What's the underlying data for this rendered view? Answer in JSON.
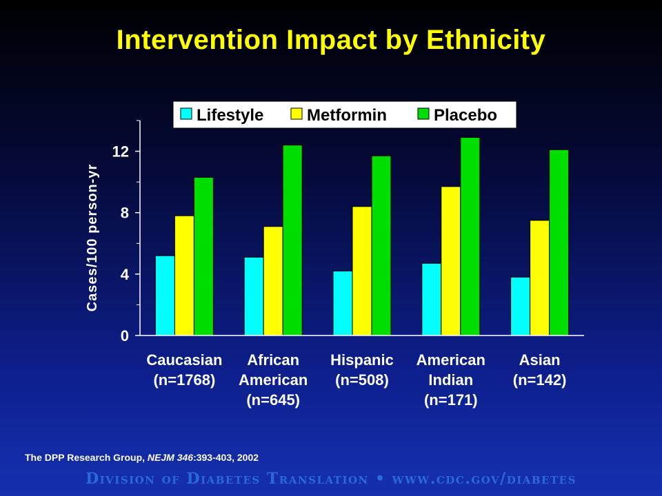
{
  "slide": {
    "title": "Intervention Impact by Ethnicity",
    "citation": {
      "prefix": "The DPP Research Group, ",
      "journal": "NEJM 346",
      "suffix": ":393-403, 2002"
    },
    "footer": {
      "left": "Division of Diabetes Translation",
      "separator": "•",
      "right": "www.cdc.gov/diabetes"
    }
  },
  "colors": {
    "title": "#ffff00",
    "text": "#ffffff",
    "footer": "#2a6ad8",
    "lifestyle": "#00ffff",
    "metformin": "#ffff00",
    "placebo": "#00dd00",
    "legend_bg": "#ffffff"
  },
  "chart_data": {
    "type": "bar",
    "ylabel": "Cases/100 person-yr",
    "ylim": [
      0,
      14
    ],
    "yticks": [
      0,
      4,
      8,
      12
    ],
    "yticks_minor": [
      2,
      6,
      10,
      14
    ],
    "grid": false,
    "legend_position": "top",
    "categories": [
      [
        "Caucasian",
        "(n=1768)"
      ],
      [
        "African",
        "American",
        "(n=645)"
      ],
      [
        "Hispanic",
        "(n=508)"
      ],
      [
        "American",
        "Indian",
        "(n=171)"
      ],
      [
        "Asian",
        "(n=142)"
      ]
    ],
    "series": [
      {
        "name": "Lifestyle",
        "color": "#00ffff",
        "values": [
          5.2,
          5.1,
          4.2,
          4.7,
          3.8
        ]
      },
      {
        "name": "Metformin",
        "color": "#ffff00",
        "values": [
          7.8,
          7.1,
          8.4,
          9.7,
          7.5
        ]
      },
      {
        "name": "Placebo",
        "color": "#00dd00",
        "values": [
          10.3,
          12.4,
          11.7,
          12.9,
          12.1
        ]
      }
    ]
  }
}
